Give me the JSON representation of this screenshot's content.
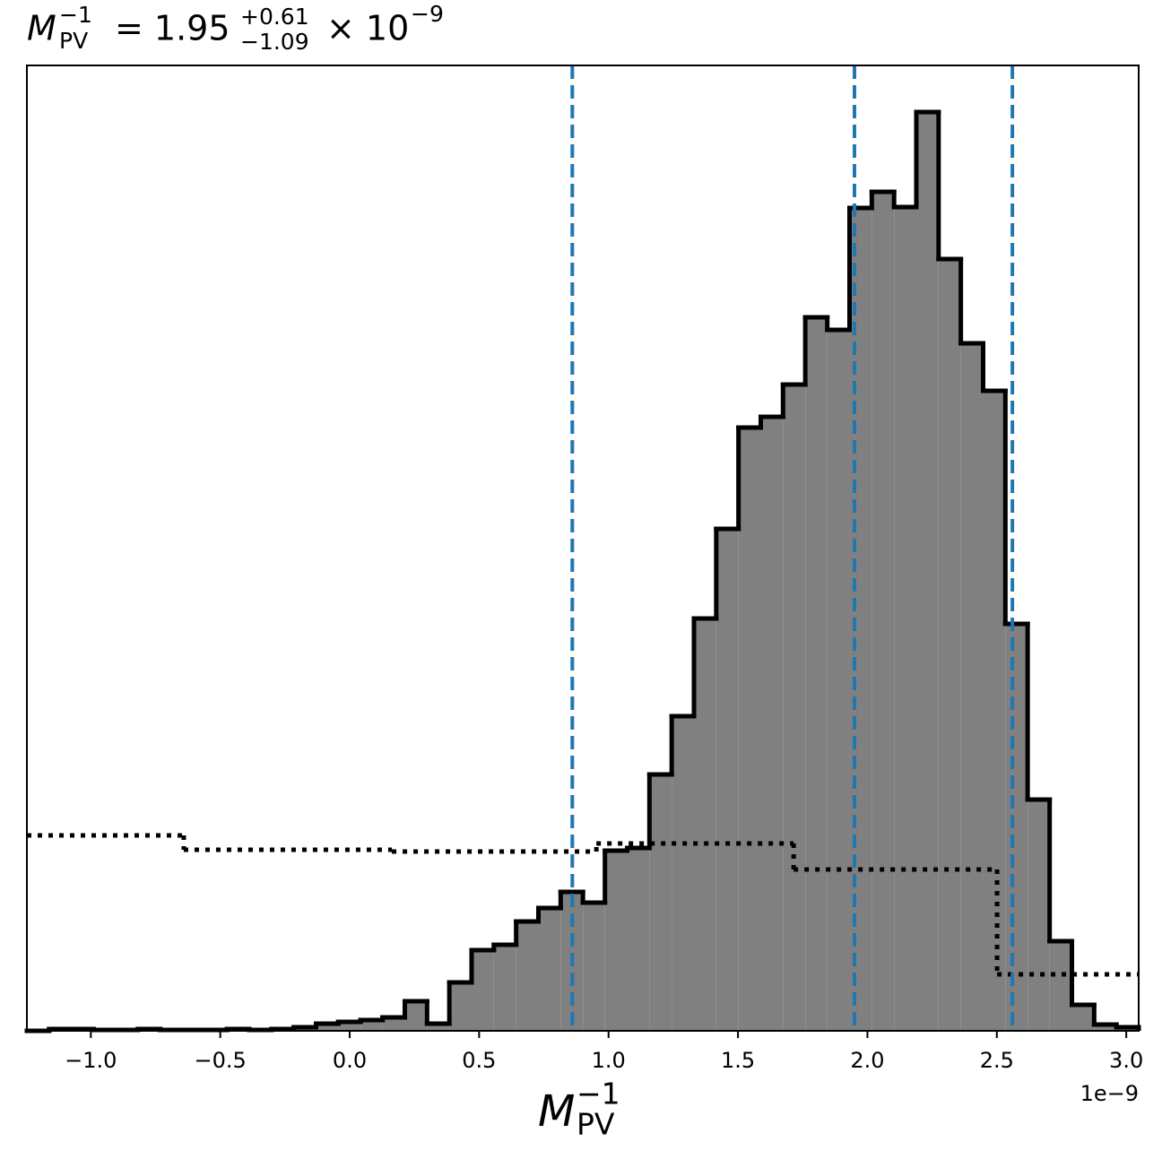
{
  "chart_data": {
    "type": "histogram",
    "title": {
      "symbol": "M",
      "sub": "PV",
      "sup": "−1",
      "equals": "= 1.95",
      "upper": "+0.61",
      "lower": "−1.09",
      "times": "× 10",
      "exponent": "−9"
    },
    "xlabel": {
      "symbol": "M",
      "sub": "PV",
      "sup": "−1"
    },
    "x_offset_label": "1e−9",
    "bins": [
      -1.247,
      -1.161,
      -1.075,
      -0.989,
      -0.903,
      -0.818,
      -0.732,
      -0.646,
      -0.56,
      -0.474,
      -0.388,
      -0.302,
      -0.216,
      -0.13,
      -0.044,
      0.042,
      0.127,
      0.213,
      0.299,
      0.385,
      0.471,
      0.557,
      0.643,
      0.729,
      0.815,
      0.901,
      0.986,
      1.072,
      1.158,
      1.244,
      1.33,
      1.416,
      1.502,
      1.588,
      1.674,
      1.76,
      1.845,
      1.931,
      2.017,
      2.103,
      2.189,
      2.275,
      2.361,
      2.447,
      2.533,
      2.619,
      2.704,
      2.79,
      2.876,
      2.962,
      3.048
    ],
    "values": [
      0,
      0.2,
      0.2,
      0.1,
      0.1,
      0.2,
      0.1,
      0.1,
      0.1,
      0.2,
      0.1,
      0.2,
      0.4,
      0.8,
      1.0,
      1.2,
      1.5,
      3.3,
      0.8,
      5.4,
      9.0,
      9.6,
      12.2,
      13.7,
      15.5,
      14.3,
      20.1,
      20.4,
      28.6,
      35.1,
      46.0,
      56.0,
      67.3,
      68.5,
      72.1,
      79.6,
      78.2,
      91.8,
      93.6,
      91.9,
      102.5,
      86.1,
      76.7,
      71.4,
      45.4,
      25.8,
      10.0,
      2.9,
      0.7,
      0.4
    ],
    "color": "#808080",
    "edgecolor": "#000000",
    "overlay": {
      "bins": [
        -1.247,
        -0.641,
        0.163,
        0.953,
        1.715,
        2.501,
        3.048
      ],
      "values": [
        21.8,
        20.2,
        20.0,
        20.9,
        18.0,
        6.3
      ],
      "color": "#000000",
      "linestyle": "dotted"
    },
    "vlines": [
      0.86,
      1.95,
      2.56
    ],
    "vline_color": "#1f77b4",
    "vline_style": "dashed",
    "xlim": [
      -1.247,
      3.048
    ],
    "ylim": [
      0,
      107.7
    ],
    "xticks": [
      {
        "value": -1.0,
        "label": "−1.0"
      },
      {
        "value": -0.5,
        "label": "−0.5"
      },
      {
        "value": 0.0,
        "label": "0.0"
      },
      0.5,
      {
        "value": 1.0,
        "label": "1.0"
      },
      1.5,
      {
        "value": 2.0,
        "label": "2.0"
      },
      2.5,
      {
        "value": 3.0,
        "label": "3.0"
      }
    ],
    "grid": false
  }
}
